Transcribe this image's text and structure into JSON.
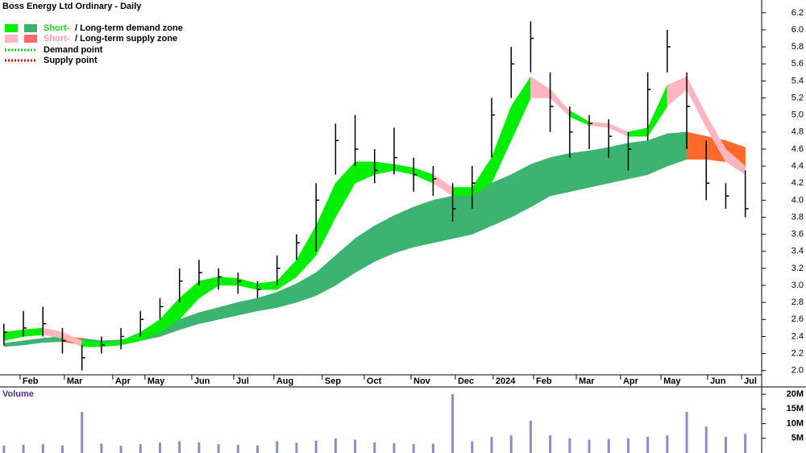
{
  "chart_data": [
    {
      "type": "candlestick",
      "title": "Boss Energy Ltd Ordinary - Daily",
      "legend": [
        {
          "highlight": "Short-",
          "text": "/ Long-term demand zone",
          "colors": [
            "#00ee00",
            "#3cb371"
          ]
        },
        {
          "highlight": "Short-",
          "text": "/ Long-term supply zone",
          "colors": [
            "#ffb6c1",
            "#ff6a2a"
          ]
        },
        {
          "text": "Demand point",
          "colors": [
            "#00dd00"
          ]
        },
        {
          "text": "Supply point",
          "colors": [
            "#dd0000"
          ]
        }
      ],
      "high": [
        2.55,
        2.7,
        2.75,
        2.5,
        2.3,
        2.4,
        2.5,
        2.7,
        2.85,
        3.2,
        3.3,
        3.2,
        3.15,
        3.05,
        3.35,
        3.6,
        4.2,
        4.9,
        5.0,
        4.6,
        4.85,
        4.5,
        4.4,
        4.2,
        4.4,
        5.2,
        5.8,
        6.1,
        5.5,
        5.1,
        5.0,
        4.95,
        4.8,
        5.5,
        6.0,
        5.5,
        4.7,
        4.2,
        4.35
      ],
      "low": [
        2.3,
        2.4,
        2.4,
        2.2,
        2.0,
        2.2,
        2.25,
        2.4,
        2.6,
        2.8,
        3.0,
        2.95,
        2.9,
        2.85,
        3.0,
        3.3,
        3.4,
        4.3,
        4.4,
        4.2,
        4.3,
        4.1,
        4.05,
        3.75,
        3.9,
        4.5,
        5.2,
        5.5,
        4.8,
        4.5,
        4.6,
        4.5,
        4.35,
        4.7,
        5.5,
        4.6,
        4.0,
        3.9,
        3.8
      ],
      "close": [
        2.45,
        2.5,
        2.55,
        2.35,
        2.15,
        2.3,
        2.4,
        2.6,
        2.75,
        3.05,
        3.15,
        3.1,
        3.05,
        2.95,
        3.2,
        3.5,
        4.0,
        4.7,
        4.6,
        4.35,
        4.5,
        4.3,
        4.25,
        3.9,
        4.2,
        5.0,
        5.6,
        5.9,
        5.1,
        4.8,
        4.9,
        4.75,
        4.6,
        5.3,
        5.8,
        5.1,
        4.2,
        4.05,
        3.9
      ],
      "short_term": {
        "upper": [
          2.45,
          2.48,
          2.5,
          2.45,
          2.35,
          2.33,
          2.35,
          2.45,
          2.6,
          2.85,
          3.05,
          3.1,
          3.08,
          3.02,
          3.05,
          3.3,
          3.7,
          4.2,
          4.45,
          4.45,
          4.42,
          4.38,
          4.3,
          4.15,
          4.15,
          4.5,
          5.1,
          5.45,
          5.3,
          5.05,
          4.92,
          4.9,
          4.8,
          4.85,
          5.35,
          5.45,
          5.0,
          4.6,
          4.4
        ],
        "lower": [
          2.35,
          2.4,
          2.42,
          2.38,
          2.28,
          2.28,
          2.3,
          2.35,
          2.45,
          2.6,
          2.85,
          3.0,
          3.0,
          2.95,
          2.95,
          3.1,
          3.35,
          3.8,
          4.2,
          4.3,
          4.35,
          4.3,
          4.2,
          4.05,
          4.05,
          4.2,
          4.7,
          5.2,
          5.2,
          4.98,
          4.88,
          4.85,
          4.75,
          4.75,
          5.1,
          5.3,
          4.85,
          4.45,
          4.3
        ]
      },
      "long_term": {
        "upper": [
          2.32,
          2.35,
          2.38,
          2.4,
          2.38,
          2.35,
          2.36,
          2.4,
          2.5,
          2.6,
          2.68,
          2.74,
          2.8,
          2.85,
          2.92,
          3.02,
          3.15,
          3.35,
          3.55,
          3.7,
          3.82,
          3.92,
          4.0,
          4.05,
          4.1,
          4.2,
          4.3,
          4.42,
          4.5,
          4.55,
          4.58,
          4.62,
          4.67,
          4.7,
          4.78,
          4.8,
          4.75,
          4.7,
          4.62
        ],
        "lower": [
          2.28,
          2.3,
          2.33,
          2.34,
          2.3,
          2.3,
          2.32,
          2.35,
          2.4,
          2.48,
          2.55,
          2.6,
          2.65,
          2.7,
          2.74,
          2.8,
          2.88,
          3.0,
          3.15,
          3.28,
          3.38,
          3.45,
          3.5,
          3.55,
          3.6,
          3.7,
          3.8,
          3.92,
          4.05,
          4.1,
          4.15,
          4.2,
          4.25,
          4.3,
          4.4,
          4.48,
          4.48,
          4.45,
          4.4
        ]
      },
      "xlim": [
        -0.2,
        38.84
      ],
      "xticks": [
        {
          "value": 0.83,
          "label": "Feb"
        },
        {
          "value": 3.1,
          "label": "Mar"
        },
        {
          "value": 5.58,
          "label": "Apr"
        },
        {
          "value": 7.23,
          "label": "May"
        },
        {
          "value": 9.63,
          "label": "Jun"
        },
        {
          "value": 11.78,
          "label": "Jul"
        },
        {
          "value": 13.84,
          "label": "Aug"
        },
        {
          "value": 16.32,
          "label": "Sep"
        },
        {
          "value": 18.47,
          "label": "Oct"
        },
        {
          "value": 20.87,
          "label": "Nov"
        },
        {
          "value": 23.14,
          "label": "Dec"
        },
        {
          "value": 25.08,
          "label": "2024"
        },
        {
          "value": 27.15,
          "label": "Feb"
        },
        {
          "value": 29.34,
          "label": "Mar"
        },
        {
          "value": 31.61,
          "label": "Apr"
        },
        {
          "value": 33.68,
          "label": "May"
        },
        {
          "value": 36.07,
          "label": "Jun"
        },
        {
          "value": 37.81,
          "label": "Jul"
        }
      ],
      "ylim": [
        1.95,
        6.35
      ],
      "yticks": [
        {
          "value": 2.0,
          "label": "2.0"
        },
        2.2,
        2.4,
        2.6,
        2.8,
        {
          "value": 3.0,
          "label": "3.0"
        },
        3.2,
        3.4,
        3.6,
        3.8,
        {
          "value": 4.0,
          "label": "4.0"
        },
        4.2,
        4.4,
        4.6,
        4.8,
        {
          "value": 5.0,
          "label": "5.0"
        },
        5.2,
        5.4,
        5.6,
        5.8,
        {
          "value": 6.0,
          "label": "6.0"
        },
        6.2
      ],
      "color": "#000000"
    },
    {
      "type": "bar",
      "title": "Volume",
      "values": [
        2500000,
        2800000,
        3000000,
        2600000,
        14000000,
        3200000,
        2500000,
        3000000,
        3500000,
        4000000,
        3600000,
        3000000,
        2800000,
        2600000,
        4000000,
        3500000,
        4200000,
        5000000,
        4500000,
        3600000,
        3300000,
        3000000,
        3200000,
        20000000,
        4000000,
        5500000,
        6000000,
        11000000,
        6000000,
        5000000,
        4500000,
        4800000,
        5000000,
        5500000,
        6000000,
        14000000,
        9000000,
        5500000,
        6500000
      ],
      "ylim": [
        0,
        22500000
      ],
      "yticks": [
        {
          "value": 5000000,
          "label": "5M"
        },
        {
          "value": 10000000,
          "label": "10M"
        },
        {
          "value": 15000000,
          "label": "15M"
        },
        {
          "value": 20000000,
          "label": "20M"
        }
      ],
      "color": "#8c8cc8"
    }
  ]
}
